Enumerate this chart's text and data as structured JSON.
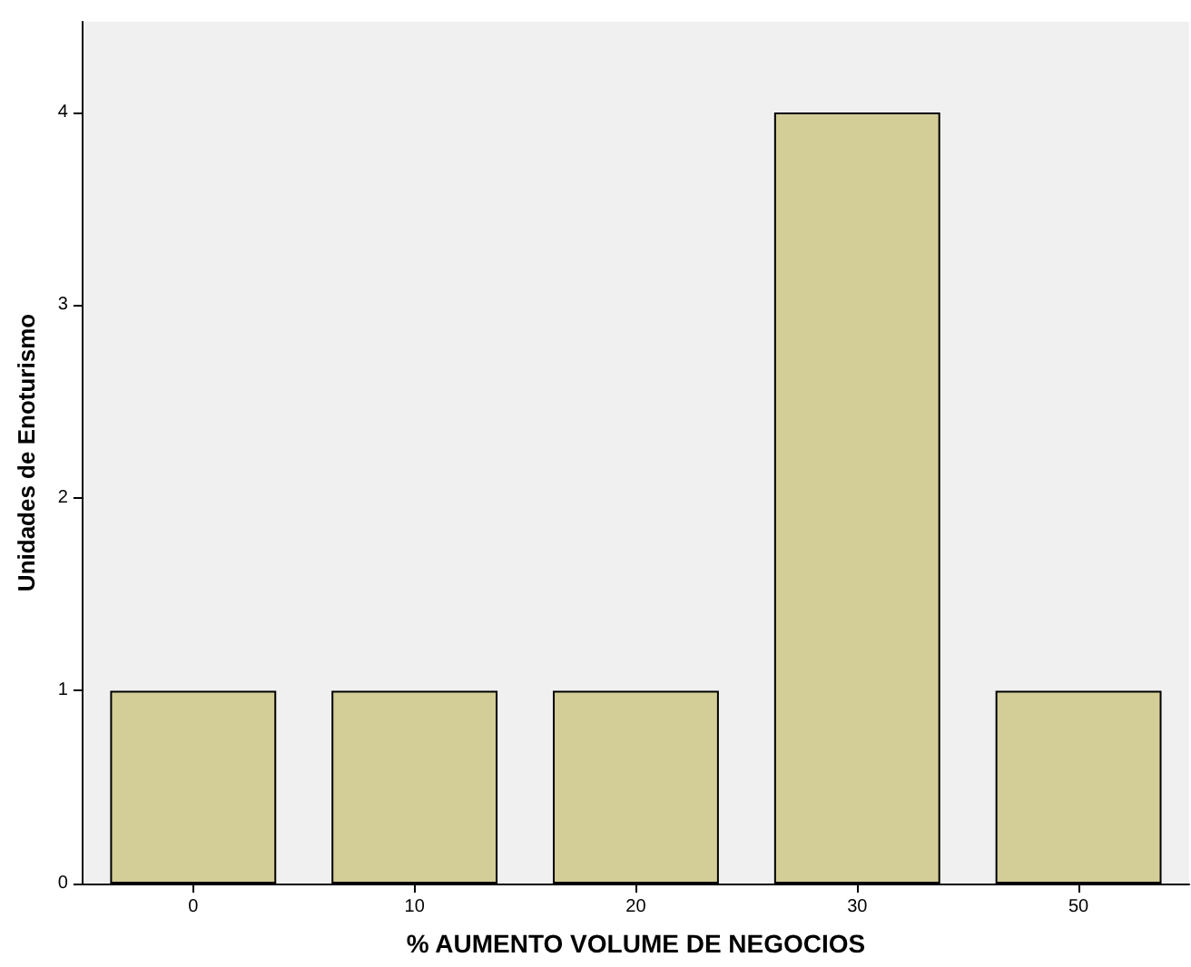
{
  "chart_data": {
    "type": "bar",
    "xlabel": "% AUMENTO VOLUME DE NEGOCIOS",
    "ylabel": "Unidades de Enoturismo",
    "categories": [
      "0",
      "10",
      "20",
      "30",
      "50"
    ],
    "values": [
      1,
      1,
      1,
      4,
      1
    ],
    "color": "#d3ce97",
    "ylim": [
      0,
      4.47
    ],
    "yticks": [
      0,
      1,
      2,
      3,
      4
    ],
    "grid": false
  }
}
